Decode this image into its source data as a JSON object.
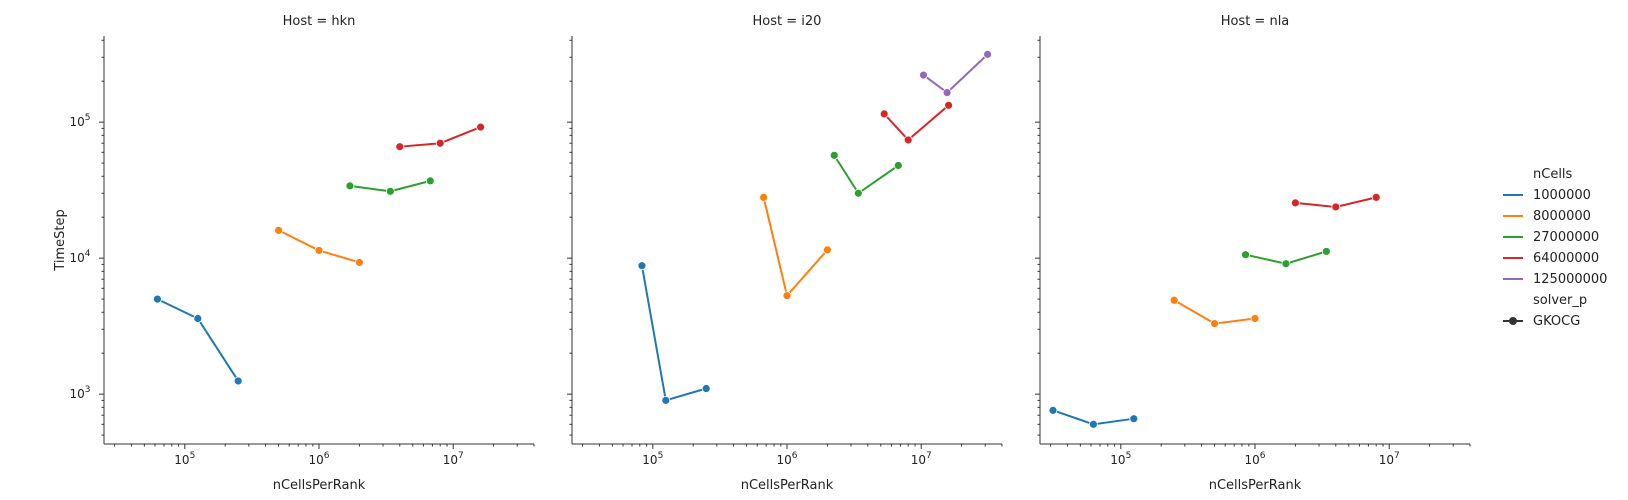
{
  "chart_data": [
    {
      "type": "line",
      "title": "Host = hkn",
      "xlabel": "nCellsPerRank",
      "ylabel": "TimeStep",
      "xscale": "log",
      "yscale": "log",
      "xlim": [
        25000,
        40000000
      ],
      "ylim": [
        430,
        430000
      ],
      "xticks": [
        {
          "value": 100000,
          "base": "10",
          "exp": "5"
        },
        {
          "value": 1000000,
          "base": "10",
          "exp": "6"
        },
        {
          "value": 10000000,
          "base": "10",
          "exp": "7"
        }
      ],
      "yticks": [
        {
          "value": 1000,
          "base": "10",
          "exp": "3"
        },
        {
          "value": 10000,
          "base": "10",
          "exp": "4"
        },
        {
          "value": 100000,
          "base": "10",
          "exp": "5"
        }
      ],
      "series": [
        {
          "name": "1000000",
          "color": "#1f77b4",
          "x": [
            62500,
            125000,
            250000
          ],
          "y": [
            5000,
            3600,
            1250
          ]
        },
        {
          "name": "8000000",
          "color": "#ff7f0e",
          "x": [
            500000,
            1000000,
            2000000
          ],
          "y": [
            16000,
            11400,
            9300
          ]
        },
        {
          "name": "27000000",
          "color": "#2ca02c",
          "x": [
            1700000,
            3400000,
            6750000
          ],
          "y": [
            34000,
            31000,
            37000
          ]
        },
        {
          "name": "64000000",
          "color": "#d62728",
          "x": [
            4000000,
            8000000,
            16000000
          ],
          "y": [
            66000,
            70000,
            92000
          ]
        }
      ]
    },
    {
      "type": "line",
      "title": "Host = i20",
      "xlabel": "nCellsPerRank",
      "ylabel": "",
      "xscale": "log",
      "yscale": "log",
      "xlim": [
        25000,
        40000000
      ],
      "ylim": [
        430,
        430000
      ],
      "xticks": [
        {
          "value": 100000,
          "base": "10",
          "exp": "5"
        },
        {
          "value": 1000000,
          "base": "10",
          "exp": "6"
        },
        {
          "value": 10000000,
          "base": "10",
          "exp": "7"
        }
      ],
      "yticks": [],
      "series": [
        {
          "name": "1000000",
          "color": "#1f77b4",
          "x": [
            83000,
            125000,
            250000
          ],
          "y": [
            8800,
            900,
            1100
          ]
        },
        {
          "name": "8000000",
          "color": "#ff7f0e",
          "x": [
            670000,
            1000000,
            2000000
          ],
          "y": [
            28000,
            5300,
            11500
          ]
        },
        {
          "name": "27000000",
          "color": "#2ca02c",
          "x": [
            2250000,
            3400000,
            6750000
          ],
          "y": [
            57000,
            30000,
            48000
          ]
        },
        {
          "name": "64000000",
          "color": "#d62728",
          "x": [
            5300000,
            8000000,
            16000000
          ],
          "y": [
            115000,
            74000,
            133000
          ]
        },
        {
          "name": "125000000",
          "color": "#9467bd",
          "x": [
            10400000,
            15600000,
            31250000
          ],
          "y": [
            222000,
            165000,
            315000
          ]
        }
      ]
    },
    {
      "type": "line",
      "title": "Host = nla",
      "xlabel": "nCellsPerRank",
      "ylabel": "",
      "xscale": "log",
      "yscale": "log",
      "xlim": [
        25000,
        40000000
      ],
      "ylim": [
        430,
        430000
      ],
      "xticks": [
        {
          "value": 100000,
          "base": "10",
          "exp": "5"
        },
        {
          "value": 1000000,
          "base": "10",
          "exp": "6"
        },
        {
          "value": 10000000,
          "base": "10",
          "exp": "7"
        }
      ],
      "yticks": [],
      "series": [
        {
          "name": "1000000",
          "color": "#1f77b4",
          "x": [
            31250,
            62500,
            125000
          ],
          "y": [
            760,
            600,
            660
          ]
        },
        {
          "name": "8000000",
          "color": "#ff7f0e",
          "x": [
            250000,
            500000,
            1000000
          ],
          "y": [
            4900,
            3300,
            3600
          ]
        },
        {
          "name": "27000000",
          "color": "#2ca02c",
          "x": [
            850000,
            1700000,
            3400000
          ],
          "y": [
            10600,
            9100,
            11200
          ]
        },
        {
          "name": "64000000",
          "color": "#d62728",
          "x": [
            2000000,
            4000000,
            8000000
          ],
          "y": [
            25500,
            23800,
            28000
          ]
        }
      ]
    }
  ],
  "legend": {
    "placement": "right",
    "hue_title": "nCells",
    "hue_items": [
      {
        "label": "1000000",
        "color": "#1f77b4"
      },
      {
        "label": "8000000",
        "color": "#ff7f0e"
      },
      {
        "label": "27000000",
        "color": "#2ca02c"
      },
      {
        "label": "64000000",
        "color": "#d62728"
      },
      {
        "label": "125000000",
        "color": "#9467bd"
      }
    ],
    "style_title": "solver_p",
    "style_items": [
      {
        "label": "GKOCG",
        "color": "#333333"
      }
    ]
  }
}
